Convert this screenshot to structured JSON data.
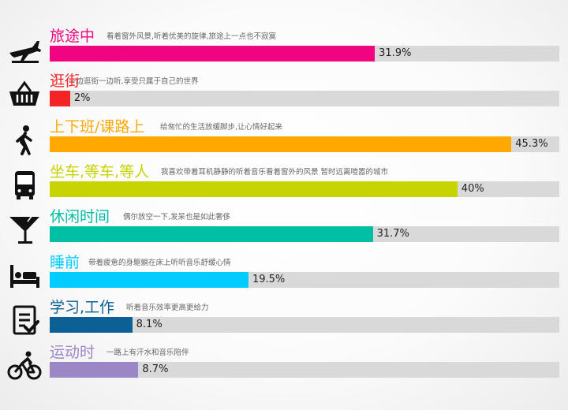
{
  "chart_data": {
    "type": "bar",
    "orientation": "horizontal",
    "xlim": [
      0,
      50
    ],
    "categories": [
      "旅途中",
      "逛街",
      "上下班/课路上",
      "坐车,等车,等人",
      "休闲时间",
      "睡前",
      "学习,工作",
      "运动时"
    ],
    "descriptions": [
      "看着窗外风景,听着优美的旋律,旅途上一点也不寂寞",
      "一边逛街一边听,享受只属于自己的世界",
      "给匆忙的生活放缓脚步,让心情好起来",
      "我喜欢带着耳机静静的听着音乐看着窗外的风景 暂时远离喧嚣的城市",
      "偶尔放空一下,发呆也是如此奢侈",
      "带着疲惫的身躯躺在床上听听音乐舒缓心情",
      "听着音乐效率更高更给力",
      "一路上有汗水和音乐陪伴"
    ],
    "values": [
      31.9,
      2,
      45.3,
      40,
      31.7,
      19.5,
      8.1,
      8.7
    ],
    "labels": [
      "31.9%",
      "2%",
      "45.3%",
      "40%",
      "31.7%",
      "19.5%",
      "8.1%",
      "8.7%"
    ],
    "colors": [
      "#f0047f",
      "#f42424",
      "#ffa800",
      "#c8d400",
      "#00bfa5",
      "#00ccff",
      "#0b6096",
      "#9b86c6"
    ],
    "icons": [
      "airplane-icon",
      "shopping-basket-icon",
      "walking-person-icon",
      "bus-icon",
      "cocktail-glass-icon",
      "bed-icon",
      "checklist-icon",
      "bicycle-rider-icon"
    ],
    "track_color": "#d9d9d9",
    "grid": false,
    "legend": "none"
  }
}
